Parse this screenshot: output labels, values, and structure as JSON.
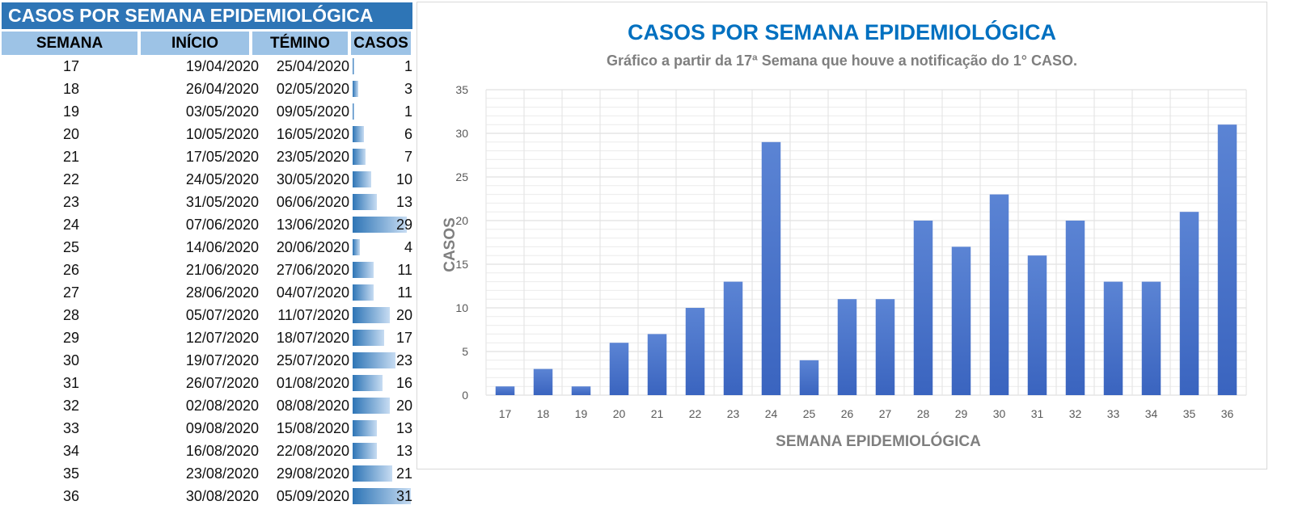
{
  "table": {
    "title": "CASOS POR SEMANA EPIDEMIOLÓGICA",
    "headers": [
      "SEMANA",
      "INÍCIO",
      "TÉMINO",
      "CASOS"
    ],
    "bar_color": "#2e75b6",
    "rows": [
      [
        "17",
        "19/04/2020",
        "25/04/2020",
        1
      ],
      [
        "18",
        "26/04/2020",
        "02/05/2020",
        3
      ],
      [
        "19",
        "03/05/2020",
        "09/05/2020",
        1
      ],
      [
        "20",
        "10/05/2020",
        "16/05/2020",
        6
      ],
      [
        "21",
        "17/05/2020",
        "23/05/2020",
        7
      ],
      [
        "22",
        "24/05/2020",
        "30/05/2020",
        10
      ],
      [
        "23",
        "31/05/2020",
        "06/06/2020",
        13
      ],
      [
        "24",
        "07/06/2020",
        "13/06/2020",
        29
      ],
      [
        "25",
        "14/06/2020",
        "20/06/2020",
        4
      ],
      [
        "26",
        "21/06/2020",
        "27/06/2020",
        11
      ],
      [
        "27",
        "28/06/2020",
        "04/07/2020",
        11
      ],
      [
        "28",
        "05/07/2020",
        "11/07/2020",
        20
      ],
      [
        "29",
        "12/07/2020",
        "18/07/2020",
        17
      ],
      [
        "30",
        "19/07/2020",
        "25/07/2020",
        23
      ],
      [
        "31",
        "26/07/2020",
        "01/08/2020",
        16
      ],
      [
        "32",
        "02/08/2020",
        "08/08/2020",
        20
      ],
      [
        "33",
        "09/08/2020",
        "15/08/2020",
        13
      ],
      [
        "34",
        "16/08/2020",
        "22/08/2020",
        13
      ],
      [
        "35",
        "23/08/2020",
        "29/08/2020",
        21
      ],
      [
        "36",
        "30/08/2020",
        "05/09/2020",
        31
      ]
    ]
  },
  "chart_data": {
    "type": "bar",
    "title": "CASOS POR SEMANA EPIDEMIOLÓGICA",
    "subtitle": "Gráfico a partir da 17ª Semana que houve a notificação do 1° CASO.",
    "xlabel": "SEMANA EPIDEMIOLÓGICA",
    "ylabel": "CASOS",
    "ylim": [
      0,
      35
    ],
    "yticks": [
      0,
      5,
      10,
      15,
      20,
      25,
      30,
      35
    ],
    "grid": true,
    "bar_color": "#4472c4",
    "title_color": "#0070c0",
    "categories": [
      "17",
      "18",
      "19",
      "20",
      "21",
      "22",
      "23",
      "24",
      "25",
      "26",
      "27",
      "28",
      "29",
      "30",
      "31",
      "32",
      "33",
      "34",
      "35",
      "36"
    ],
    "values": [
      1,
      3,
      1,
      6,
      7,
      10,
      13,
      29,
      4,
      11,
      11,
      20,
      17,
      23,
      16,
      20,
      13,
      13,
      21,
      31
    ]
  }
}
